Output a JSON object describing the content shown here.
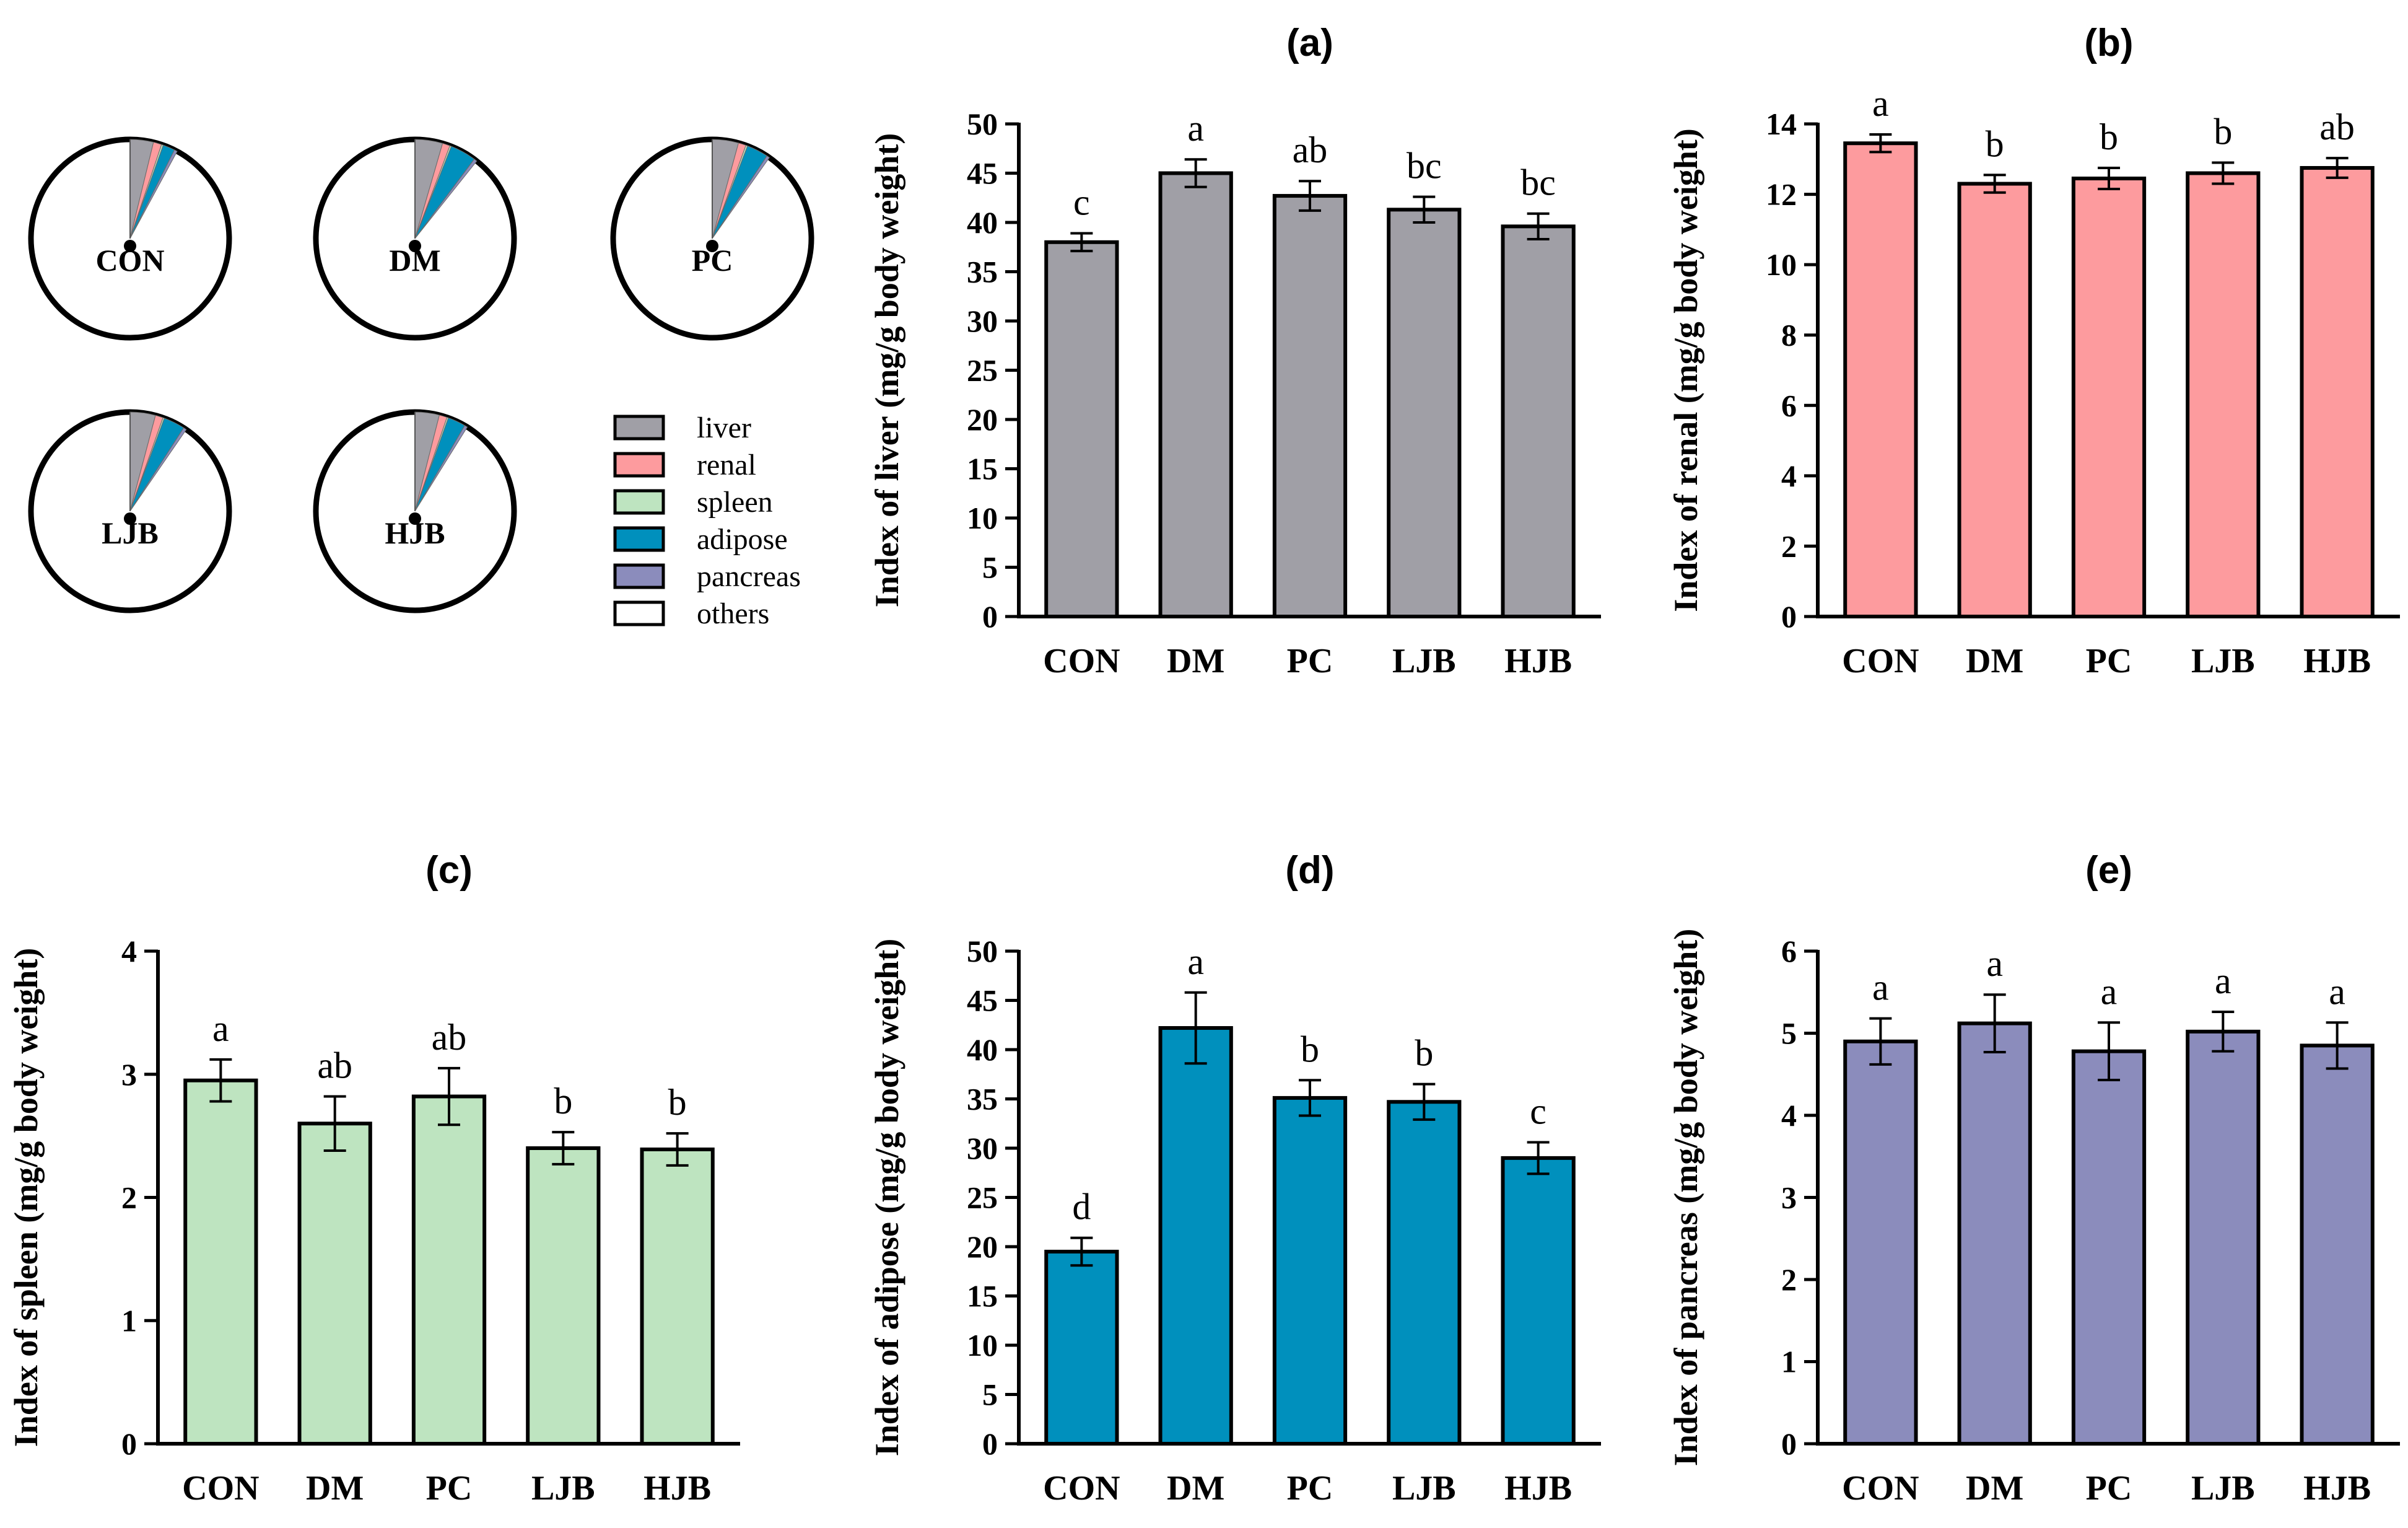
{
  "pies": {
    "groups": [
      {
        "label": "CON",
        "slices": {
          "liver": 38.0,
          "renal": 13.45,
          "spleen": 2.95,
          "adipose": 19.5,
          "pancreas": 4.9
        }
      },
      {
        "label": "DM",
        "slices": {
          "liver": 45.0,
          "renal": 12.3,
          "spleen": 2.6,
          "adipose": 42.2,
          "pancreas": 5.12
        }
      },
      {
        "label": "PC",
        "slices": {
          "liver": 42.7,
          "renal": 12.45,
          "spleen": 2.82,
          "adipose": 35.1,
          "pancreas": 4.78
        }
      },
      {
        "label": "LJB",
        "slices": {
          "liver": 41.3,
          "renal": 12.6,
          "spleen": 2.4,
          "adipose": 34.7,
          "pancreas": 5.02
        }
      },
      {
        "label": "HJB",
        "slices": {
          "liver": 39.6,
          "renal": 12.75,
          "spleen": 2.39,
          "adipose": 29.0,
          "pancreas": 4.85
        }
      }
    ],
    "legend": [
      {
        "key": "liver",
        "label": "liver",
        "color": "#a09fa6"
      },
      {
        "key": "renal",
        "label": "renal",
        "color": "#fd9b9e"
      },
      {
        "key": "spleen",
        "label": "spleen",
        "color": "#bee4c0"
      },
      {
        "key": "adipose",
        "label": "adipose",
        "color": "#0090bd"
      },
      {
        "key": "pancreas",
        "label": "pancreas",
        "color": "#8b8cbc"
      },
      {
        "key": "others",
        "label": "others",
        "color": "#ffffff"
      }
    ]
  },
  "chart_data": [
    {
      "panel": "(a)",
      "type": "bar",
      "title": "(a)",
      "ylabel": "Index of liver (mg/g body weight)",
      "categories": [
        "CON",
        "DM",
        "PC",
        "LJB",
        "HJB"
      ],
      "values": [
        38.0,
        45.0,
        42.7,
        41.3,
        39.6
      ],
      "errors": [
        0.9,
        1.4,
        1.5,
        1.3,
        1.3
      ],
      "significance": [
        "c",
        "a",
        "ab",
        "bc",
        "bc"
      ],
      "ylim": [
        0,
        50
      ],
      "yticks": [
        "0",
        "5",
        "10",
        "15",
        "20",
        "25",
        "30",
        "35",
        "40",
        "45",
        "50"
      ],
      "color": "#a09fa6"
    },
    {
      "panel": "(b)",
      "type": "bar",
      "title": "(b)",
      "ylabel": "Index of renal (mg/g body weight)",
      "categories": [
        "CON",
        "DM",
        "PC",
        "LJB",
        "HJB"
      ],
      "values": [
        13.45,
        12.3,
        12.45,
        12.6,
        12.75
      ],
      "errors": [
        0.25,
        0.25,
        0.3,
        0.3,
        0.28
      ],
      "significance": [
        "a",
        "b",
        "b",
        "b",
        "ab"
      ],
      "ylim": [
        0,
        14
      ],
      "yticks": [
        "0",
        "2",
        "4",
        "6",
        "8",
        "10",
        "12",
        "14"
      ],
      "color": "#fd9b9e"
    },
    {
      "panel": "(c)",
      "type": "bar",
      "title": "(c)",
      "ylabel": "Index of spleen (mg/g body weight)",
      "categories": [
        "CON",
        "DM",
        "PC",
        "LJB",
        "HJB"
      ],
      "values": [
        2.95,
        2.6,
        2.82,
        2.4,
        2.39
      ],
      "errors": [
        0.17,
        0.22,
        0.23,
        0.13,
        0.13
      ],
      "significance": [
        "a",
        "ab",
        "ab",
        "b",
        "b"
      ],
      "ylim": [
        0,
        4
      ],
      "yticks": [
        "0",
        "1",
        "2",
        "3",
        "4"
      ],
      "color": "#bee4c0"
    },
    {
      "panel": "(d)",
      "type": "bar",
      "title": "(d)",
      "ylabel": "Index of adipose (mg/g body weight)",
      "categories": [
        "CON",
        "DM",
        "PC",
        "LJB",
        "HJB"
      ],
      "values": [
        19.5,
        42.2,
        35.1,
        34.7,
        29.0
      ],
      "errors": [
        1.4,
        3.6,
        1.8,
        1.8,
        1.6
      ],
      "significance": [
        "d",
        "a",
        "b",
        "b",
        "c"
      ],
      "ylim": [
        0,
        50
      ],
      "yticks": [
        "0",
        "5",
        "10",
        "15",
        "20",
        "25",
        "30",
        "35",
        "40",
        "45",
        "50"
      ],
      "color": "#0090bd"
    },
    {
      "panel": "(e)",
      "type": "bar",
      "title": "(e)",
      "ylabel": "Index of pancreas (mg/g body weight)",
      "categories": [
        "CON",
        "DM",
        "PC",
        "LJB",
        "HJB"
      ],
      "values": [
        4.9,
        5.12,
        4.78,
        5.02,
        4.85
      ],
      "errors": [
        0.28,
        0.35,
        0.35,
        0.24,
        0.28
      ],
      "significance": [
        "a",
        "a",
        "a",
        "a",
        "a"
      ],
      "ylim": [
        0,
        6
      ],
      "yticks": [
        "0",
        "1",
        "2",
        "3",
        "4",
        "5",
        "6"
      ],
      "color": "#8b8cbc"
    }
  ]
}
